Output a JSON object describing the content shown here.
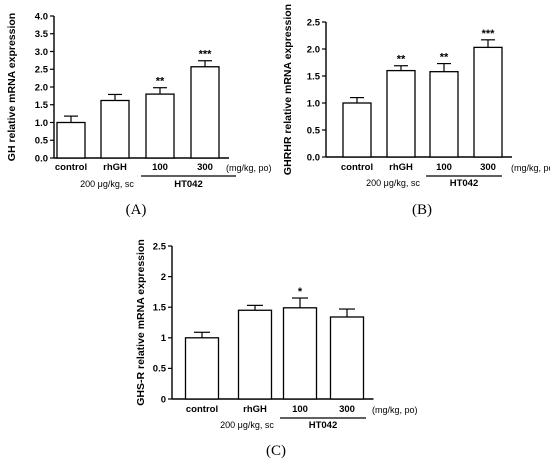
{
  "chart_data": [
    {
      "type": "bar",
      "panel_label": "(A)",
      "ylabel": "GH relative mRNA expression",
      "ylim": [
        0,
        4
      ],
      "yticks": [
        "0.0",
        "0.5",
        "1.0",
        "1.5",
        "2.0",
        "2.5",
        "3.0",
        "3.5",
        "4.0"
      ],
      "tick_step": 0.5,
      "categories": [
        "control",
        "rhGH",
        "100",
        "300"
      ],
      "values": [
        1.0,
        1.62,
        1.8,
        2.57
      ],
      "errors": [
        0.18,
        0.17,
        0.18,
        0.17
      ],
      "significance": [
        "",
        "",
        "**",
        "***"
      ],
      "dose_note": "200 μg/kg, sc",
      "group_label": "HT042",
      "units_note": "(mg/kg, po)"
    },
    {
      "type": "bar",
      "panel_label": "(B)",
      "ylabel": "GHRHR relative mRNA expression",
      "ylim": [
        0,
        2.5
      ],
      "yticks": [
        "0.0",
        "0.5",
        "1.0",
        "1.5",
        "2.0",
        "2.5"
      ],
      "tick_step": 0.5,
      "categories": [
        "control",
        "rhGH",
        "100",
        "300"
      ],
      "values": [
        1.0,
        1.6,
        1.58,
        2.03
      ],
      "errors": [
        0.1,
        0.09,
        0.15,
        0.14
      ],
      "significance": [
        "",
        "**",
        "**",
        "***"
      ],
      "dose_note": "200 μg/kg, sc",
      "group_label": "HT042",
      "units_note": "(mg/kg, po)"
    },
    {
      "type": "bar",
      "panel_label": "(C)",
      "ylabel": "GHS-R relative mRNA expression",
      "ylim": [
        0,
        2.5
      ],
      "yticks": [
        "0",
        "0.5",
        "1",
        "1.5",
        "2",
        "2.5"
      ],
      "tick_step": 0.5,
      "categories": [
        "control",
        "rhGH",
        "100",
        "300"
      ],
      "values": [
        1.0,
        1.45,
        1.49,
        1.34
      ],
      "errors": [
        0.09,
        0.08,
        0.16,
        0.13
      ],
      "significance": [
        "",
        "",
        "*",
        ""
      ],
      "dose_note": "200 μg/kg, sc",
      "group_label": "HT042",
      "units_note": "(mg/kg, po)"
    }
  ]
}
